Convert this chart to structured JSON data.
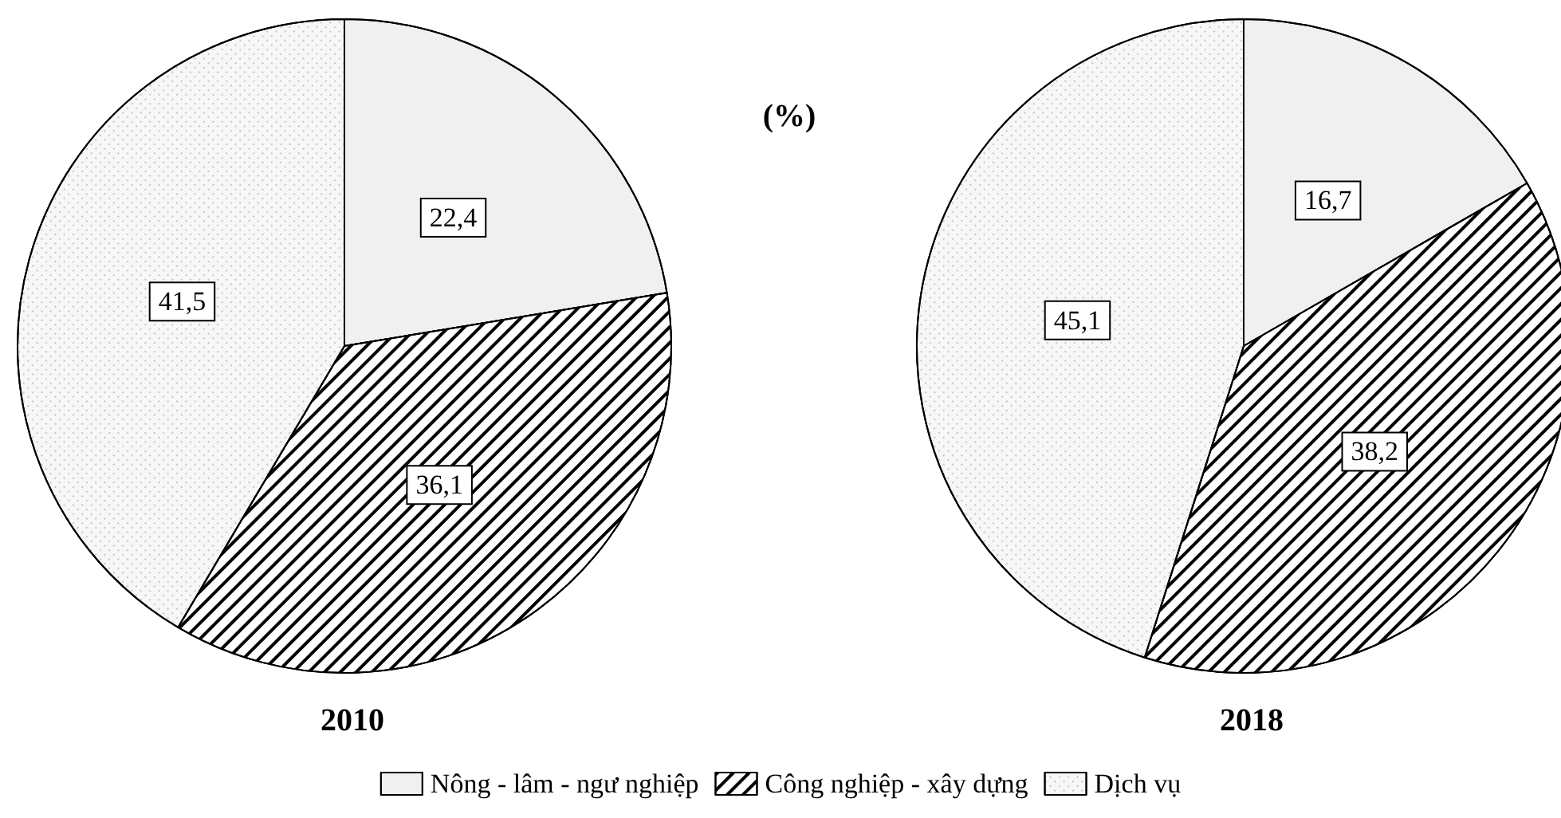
{
  "chart_data": {
    "type": "pie",
    "title": "(%)",
    "categories": [
      "Nông - lâm - ngư nghiệp",
      "Công nghiệp - xây dựng",
      "Dịch vụ"
    ],
    "colors": [
      "#f0f0f0",
      "#ffffff",
      "#f7f7f7"
    ],
    "legend": "bottom",
    "series": [
      {
        "name": "2010",
        "values": [
          22.4,
          36.1,
          41.5
        ],
        "value_labels": [
          "22,4",
          "36,1",
          "41,5"
        ]
      },
      {
        "name": "2018",
        "values": [
          16.7,
          38.2,
          45.1
        ],
        "value_labels": [
          "16,7",
          "38,2",
          "45,1"
        ]
      }
    ]
  }
}
